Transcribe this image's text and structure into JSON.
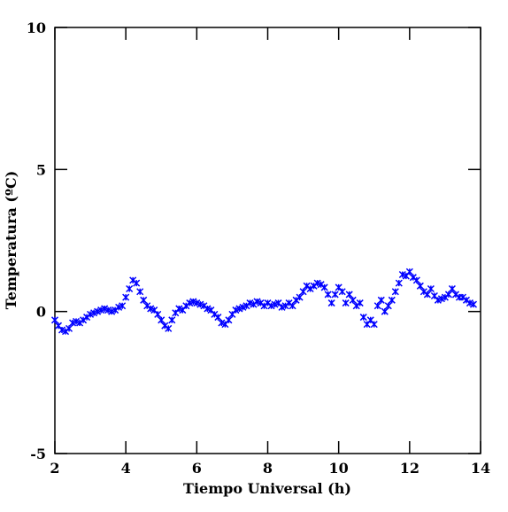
{
  "chart_data": {
    "type": "scatter",
    "x_label": "Tiempo Universal (h)",
    "y_label": "Temperatura (ºC)",
    "xlim": [
      2,
      14
    ],
    "ylim": [
      -5,
      10
    ],
    "xticks": [
      2,
      4,
      6,
      8,
      10,
      12,
      14
    ],
    "yticks": [
      -5,
      0,
      5,
      10
    ],
    "marker_color": "#0000ff",
    "x": [
      2.0,
      2.1,
      2.2,
      2.3,
      2.4,
      2.5,
      2.6,
      2.7,
      2.8,
      2.9,
      3.0,
      3.1,
      3.2,
      3.3,
      3.4,
      3.5,
      3.6,
      3.7,
      3.8,
      3.9,
      4.0,
      4.1,
      4.2,
      4.3,
      4.4,
      4.5,
      4.6,
      4.7,
      4.8,
      4.9,
      5.0,
      5.1,
      5.2,
      5.3,
      5.4,
      5.5,
      5.6,
      5.7,
      5.8,
      5.9,
      6.0,
      6.1,
      6.2,
      6.3,
      6.4,
      6.5,
      6.6,
      6.7,
      6.8,
      6.9,
      7.0,
      7.1,
      7.2,
      7.3,
      7.4,
      7.5,
      7.6,
      7.7,
      7.8,
      7.9,
      8.0,
      8.1,
      8.2,
      8.3,
      8.4,
      8.5,
      8.6,
      8.7,
      8.8,
      8.9,
      9.0,
      9.1,
      9.2,
      9.3,
      9.4,
      9.5,
      9.6,
      9.7,
      9.8,
      9.9,
      10.0,
      10.1,
      10.2,
      10.3,
      10.4,
      10.5,
      10.6,
      10.7,
      10.8,
      10.9,
      11.0,
      11.1,
      11.2,
      11.3,
      11.4,
      11.5,
      11.6,
      11.7,
      11.8,
      11.9,
      12.0,
      12.1,
      12.2,
      12.3,
      12.4,
      12.5,
      12.6,
      12.7,
      12.8,
      12.9,
      13.0,
      13.1,
      13.2,
      13.3,
      13.4,
      13.5,
      13.6,
      13.7,
      13.8
    ],
    "values": [
      -0.3,
      -0.5,
      -0.65,
      -0.7,
      -0.6,
      -0.4,
      -0.35,
      -0.4,
      -0.3,
      -0.2,
      -0.1,
      -0.05,
      0.0,
      0.05,
      0.1,
      0.05,
      0.0,
      0.05,
      0.15,
      0.2,
      0.5,
      0.8,
      1.1,
      1.0,
      0.7,
      0.4,
      0.2,
      0.1,
      0.05,
      -0.1,
      -0.3,
      -0.5,
      -0.6,
      -0.3,
      -0.05,
      0.1,
      0.05,
      0.2,
      0.3,
      0.35,
      0.3,
      0.25,
      0.2,
      0.1,
      0.05,
      -0.1,
      -0.2,
      -0.4,
      -0.45,
      -0.3,
      -0.1,
      0.05,
      0.1,
      0.15,
      0.2,
      0.3,
      0.25,
      0.35,
      0.3,
      0.2,
      0.3,
      0.2,
      0.25,
      0.3,
      0.15,
      0.2,
      0.3,
      0.2,
      0.4,
      0.5,
      0.7,
      0.9,
      0.8,
      0.9,
      1.0,
      0.95,
      0.85,
      0.6,
      0.3,
      0.6,
      0.85,
      0.7,
      0.3,
      0.6,
      0.4,
      0.2,
      0.3,
      -0.2,
      -0.45,
      -0.3,
      -0.45,
      0.2,
      0.4,
      0.0,
      0.2,
      0.4,
      0.7,
      1.0,
      1.3,
      1.25,
      1.4,
      1.2,
      1.1,
      0.9,
      0.7,
      0.6,
      0.8,
      0.55,
      0.4,
      0.45,
      0.5,
      0.6,
      0.8,
      0.6,
      0.5,
      0.5,
      0.4,
      0.3,
      0.25
    ]
  }
}
